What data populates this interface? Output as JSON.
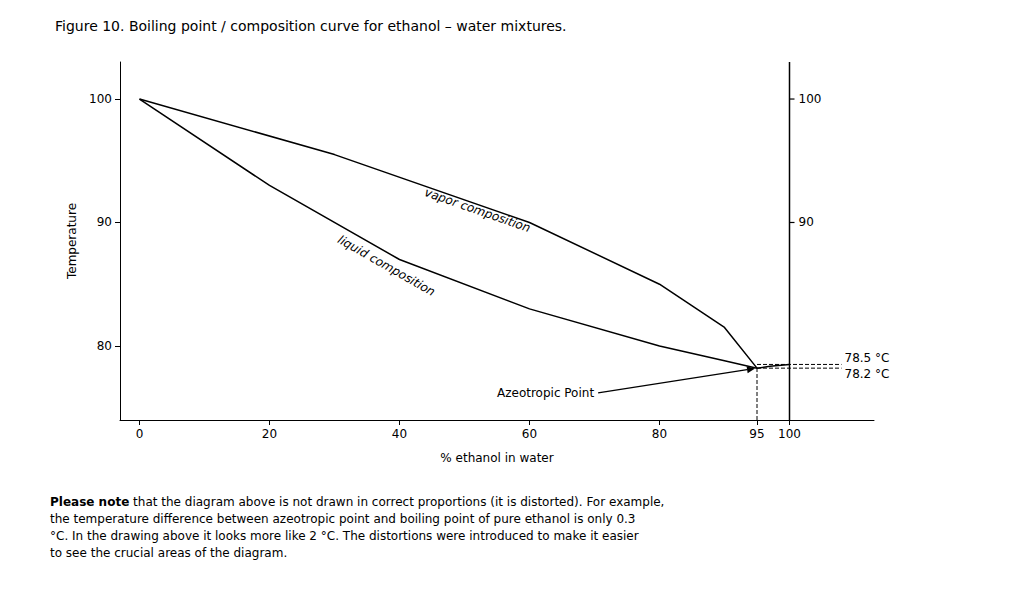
{
  "chart_data": {
    "type": "line",
    "title": "Figure 10. Boiling point / composition curve for ethanol – water mixtures.",
    "xlabel": "% ethanol in water",
    "ylabel": "Temperature",
    "xlim": [
      -3,
      113
    ],
    "ylim": [
      74,
      103
    ],
    "xticks": [
      0,
      20,
      40,
      60,
      80,
      95,
      100
    ],
    "yticks": [
      80,
      90,
      100
    ],
    "grid": false,
    "color": "#000000",
    "series": [
      {
        "x": [
          0,
          30,
          60,
          80,
          90,
          95
        ],
        "values": [
          100,
          95.5,
          90,
          85,
          81.5,
          78.2
        ]
      },
      {
        "x": [
          0,
          20,
          40,
          60,
          80,
          90,
          95
        ],
        "values": [
          100,
          93,
          87,
          83,
          80,
          78.8,
          78.2
        ]
      },
      {
        "x": [
          100,
          100
        ],
        "values": [
          74,
          103
        ]
      },
      {
        "x": [
          95,
          97,
          100
        ],
        "values": [
          78.2,
          78.35,
          78.5
        ]
      },
      {
        "x": [
          95,
          108
        ],
        "values": [
          78.5,
          78.5
        ],
        "line_style": "dashed"
      },
      {
        "x": [
          95,
          108
        ],
        "values": [
          78.2,
          78.2
        ],
        "line_style": "dashed"
      },
      {
        "x": [
          95,
          95
        ],
        "values": [
          74,
          78.2
        ],
        "line_style": "dashed"
      }
    ],
    "annotations": [
      {
        "text": "100",
        "x": 100,
        "y": 100,
        "type": "tick"
      },
      {
        "text": "90",
        "x": 100,
        "y": 90,
        "type": "tick"
      },
      {
        "text": "78.5 °C",
        "x": 108,
        "y": 78.5
      },
      {
        "text": "78.2 °C",
        "x": 108,
        "y": 78.2
      },
      {
        "text": "vapor composition",
        "x": 52,
        "y": 91
      },
      {
        "text": "liquid composition",
        "x": 38,
        "y": 86.5
      },
      {
        "text": "Azeotropic Point",
        "x": 55,
        "y": 76.2,
        "arrow_to": [
          95,
          78.2
        ]
      }
    ],
    "footnote": {
      "bold": "Please note",
      "text": "that the diagram above is not drawn in correct proportions (it is distorted). For example,\nthe temperature difference between azeotropic point and boiling point of pure ethanol is only 0.3\n°C. In the drawing above it looks more like 2 °C. The distortions were introduced to make it easier\nto see the crucial areas of the diagram."
    }
  }
}
